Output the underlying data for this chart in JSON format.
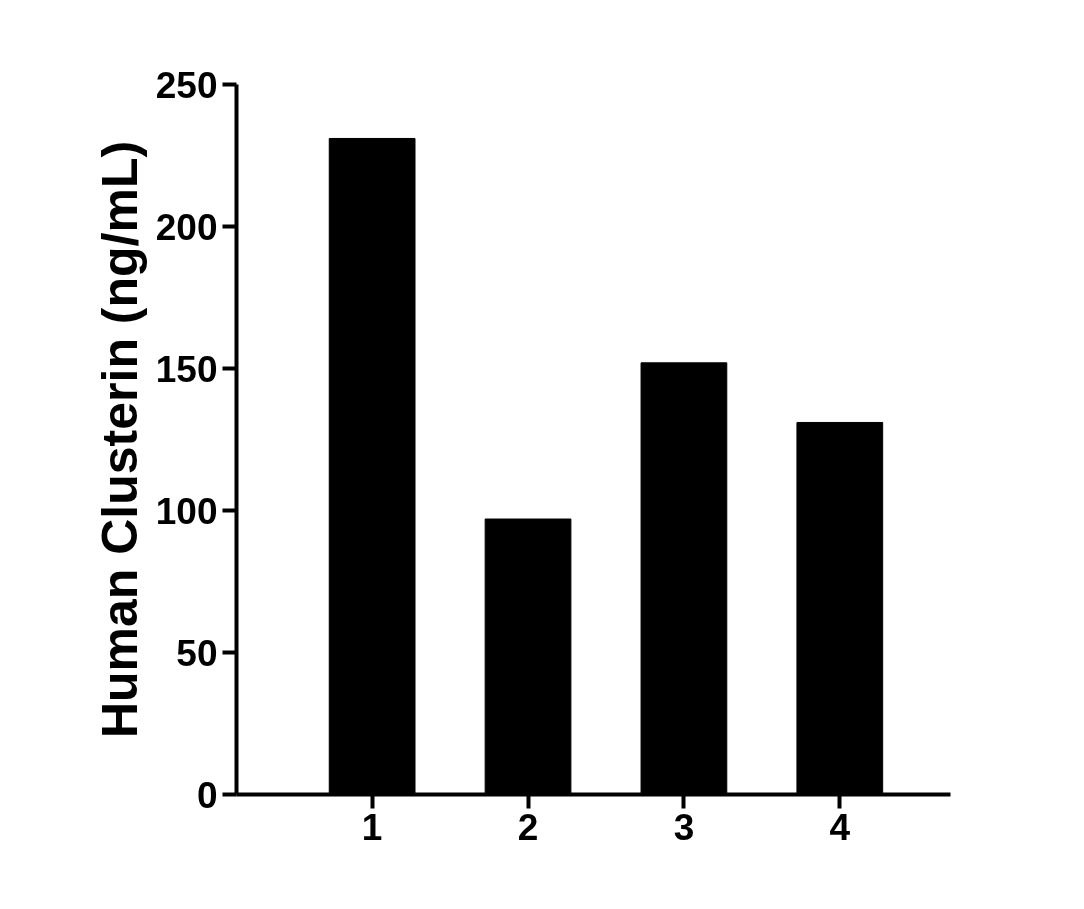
{
  "chart_data": {
    "type": "bar",
    "ylabel": "Human Clusterin (ng/mL)",
    "categories": [
      "1",
      "2",
      "3",
      "4"
    ],
    "values": [
      231,
      97,
      152,
      131
    ],
    "color": "#000000",
    "ylim": [
      0,
      250
    ],
    "yticks": [
      0,
      50,
      100,
      150,
      200,
      250
    ],
    "grid": false
  }
}
